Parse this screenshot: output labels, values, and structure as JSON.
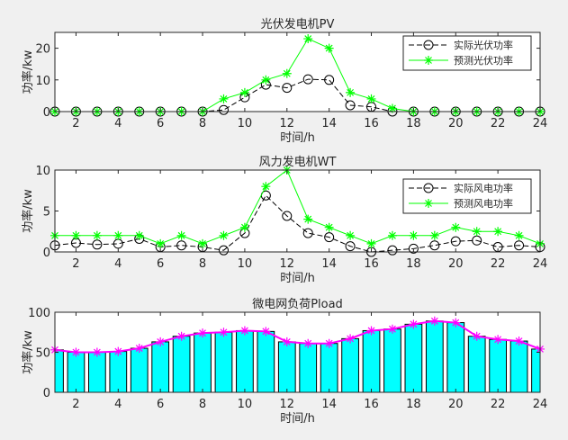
{
  "chart_data": [
    {
      "type": "line",
      "title": "光伏发电机PV",
      "xlabel": "时间/h",
      "ylabel": "功率/kw",
      "xlim": [
        1,
        24
      ],
      "ylim": [
        0,
        25
      ],
      "xticks": [
        "2",
        "4",
        "6",
        "8",
        "10",
        "12",
        "14",
        "16",
        "18",
        "20",
        "22",
        "24"
      ],
      "yticks": [
        "0",
        "10",
        "20"
      ],
      "ytick_values": [
        0,
        10,
        20
      ],
      "legend_position": "top-right",
      "x": [
        1,
        2,
        3,
        4,
        5,
        6,
        7,
        8,
        9,
        10,
        11,
        12,
        13,
        14,
        15,
        16,
        17,
        18,
        19,
        20,
        21,
        22,
        23,
        24
      ],
      "series": [
        {
          "name": "实际光伏功率",
          "color": "#000000",
          "marker": "circle",
          "dash": true,
          "values": [
            0,
            0,
            0,
            0,
            0,
            0,
            0,
            0,
            0.5,
            4.5,
            8.5,
            7.5,
            10.2,
            10,
            2,
            1.5,
            0,
            0,
            0,
            0,
            0,
            0,
            0,
            0
          ]
        },
        {
          "name": "预测光伏功率",
          "color": "#00ff00",
          "marker": "star",
          "dash": false,
          "values": [
            0,
            0,
            0,
            0,
            0,
            0,
            0,
            0,
            4,
            6,
            10,
            12,
            23,
            20,
            6,
            4,
            1,
            0,
            0,
            0,
            0,
            0,
            0,
            0
          ]
        }
      ]
    },
    {
      "type": "line",
      "title": "风力发电机WT",
      "xlabel": "时间/h",
      "ylabel": "功率/kw",
      "xlim": [
        1,
        24
      ],
      "ylim": [
        0,
        10
      ],
      "xticks": [
        "2",
        "4",
        "6",
        "8",
        "10",
        "12",
        "14",
        "16",
        "18",
        "20",
        "22",
        "24"
      ],
      "yticks": [
        "0",
        "5",
        "10"
      ],
      "ytick_values": [
        0,
        5,
        10
      ],
      "legend_position": "top-right",
      "x": [
        1,
        2,
        3,
        4,
        5,
        6,
        7,
        8,
        9,
        10,
        11,
        12,
        13,
        14,
        15,
        16,
        17,
        18,
        19,
        20,
        21,
        22,
        23,
        24
      ],
      "series": [
        {
          "name": "实际风电功率",
          "color": "#000000",
          "marker": "circle",
          "dash": true,
          "values": [
            0.8,
            1.1,
            0.9,
            1,
            1.6,
            0.6,
            0.8,
            0.6,
            0.2,
            2.3,
            6.9,
            4.4,
            2.3,
            1.8,
            0.7,
            0,
            0.2,
            0.4,
            0.8,
            1.3,
            1.4,
            0.6,
            0.8,
            0.6
          ]
        },
        {
          "name": "预测风电功率",
          "color": "#00ff00",
          "marker": "star",
          "dash": false,
          "values": [
            2,
            2,
            2,
            2,
            2,
            1,
            2,
            1,
            2,
            3,
            8,
            10,
            4,
            3,
            2,
            1,
            2,
            2,
            2,
            3,
            2.5,
            2.5,
            2,
            1
          ]
        }
      ]
    },
    {
      "type": "bar",
      "title": "微电网负荷Pload",
      "xlabel": "时间/h",
      "ylabel": "功率/kw",
      "xlim": [
        1,
        24
      ],
      "ylim": [
        0,
        100
      ],
      "xticks": [
        "2",
        "4",
        "6",
        "8",
        "10",
        "12",
        "14",
        "16",
        "18",
        "20",
        "22",
        "24"
      ],
      "yticks": [
        "0",
        "50",
        "100"
      ],
      "ytick_values": [
        0,
        50,
        100
      ],
      "x": [
        1,
        2,
        3,
        4,
        5,
        6,
        7,
        8,
        9,
        10,
        11,
        12,
        13,
        14,
        15,
        16,
        17,
        18,
        19,
        20,
        21,
        22,
        23,
        24
      ],
      "bar_color": "#00ffff",
      "line_color": "#ff00ff",
      "values": [
        53,
        50,
        50,
        51,
        55,
        63,
        70,
        74,
        75,
        77,
        76,
        63,
        61,
        61,
        67,
        77,
        79,
        85,
        89,
        87,
        70,
        66,
        64,
        54
      ]
    }
  ]
}
